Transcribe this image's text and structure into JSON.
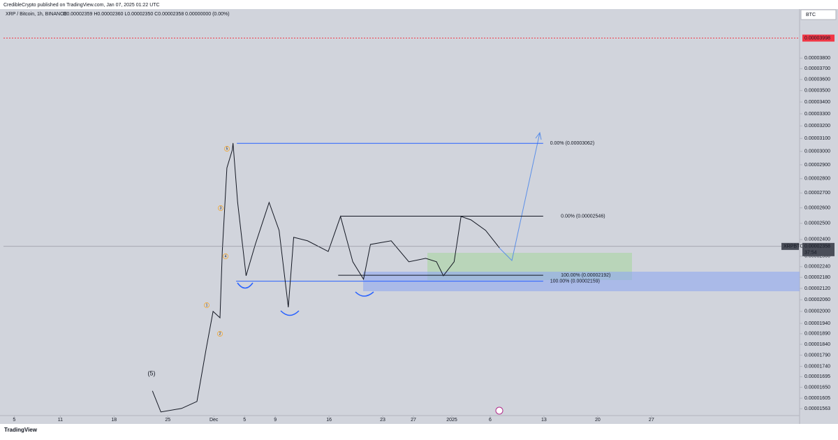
{
  "header": {
    "published": "CredibleCrypto published on TradingView.com, Jan 07, 2025 01:22 UTC",
    "footer": "TradingView"
  },
  "chart_data": {
    "type": "line",
    "log_scale": true,
    "grid": false,
    "currency": "BTC",
    "symbol_line": "XRP / Bitcoin, 1h, BINANCE",
    "ohlc": "O0.00002359 H0.00002360 L0.00002350 C0.00002358 0.00000000 (0.00%)",
    "x": [
      18,
      19.1,
      21.8,
      23.8,
      25,
      25.9,
      26.8,
      27.1,
      27.7,
      28.4,
      28.5,
      29.1,
      30.2,
      31.4,
      33.2,
      34.5,
      35.7,
      36.4,
      38.2,
      40.9,
      42.5,
      44.1,
      45.5,
      46.4,
      49.1,
      51.4,
      53.6,
      55,
      55.9,
      57.3,
      58.2,
      59.5,
      61.4,
      63.2
    ],
    "series": [
      {
        "name": "XRPBTC",
        "color": "#131722",
        "values": [
          1.635e-05,
          1.55e-05,
          1.564e-05,
          1.592e-05,
          1.819e-05,
          2e-05,
          1.968e-05,
          2.328e-05,
          2.877e-05,
          3.01e-05,
          3.064e-05,
          2.636e-05,
          2.189e-05,
          2.37e-05,
          2.636e-05,
          2.456e-05,
          2.021e-05,
          2.413e-05,
          2.392e-05,
          2.328e-05,
          2.544e-05,
          2.268e-05,
          2.17e-05,
          2.37e-05,
          2.392e-05,
          2.268e-05,
          2.288e-05,
          2.268e-05,
          2.189e-05,
          2.268e-05,
          2.544e-05,
          2.522e-05,
          2.456e-05,
          2.35e-05
        ]
      }
    ],
    "xlim": [
      -1.4,
      102.3
    ],
    "xticks": [
      {
        "value": 0,
        "label": "5"
      },
      {
        "value": 6,
        "label": "11"
      },
      {
        "value": 13,
        "label": "18"
      },
      {
        "value": 20,
        "label": "25"
      },
      {
        "value": 26,
        "label": "Dec"
      },
      {
        "value": 30,
        "label": "5"
      },
      {
        "value": 34,
        "label": "9"
      },
      {
        "value": 41,
        "label": "16"
      },
      {
        "value": 48,
        "label": "23"
      },
      {
        "value": 52,
        "label": "27"
      },
      {
        "value": 57,
        "label": "2025"
      },
      {
        "value": 62,
        "label": "6"
      },
      {
        "value": 69,
        "label": "13"
      },
      {
        "value": 76,
        "label": "20"
      },
      {
        "value": 83,
        "label": "27"
      }
    ],
    "ylim": [
      1.536e-05,
      4.303e-05
    ],
    "yticks": [
      {
        "value": 3.8e-05,
        "label": "0.00003800"
      },
      {
        "value": 3.7e-05,
        "label": "0.00003700"
      },
      {
        "value": 3.6e-05,
        "label": "0.00003600"
      },
      {
        "value": 3.5e-05,
        "label": "0.00003500"
      },
      {
        "value": 3.4e-05,
        "label": "0.00003400"
      },
      {
        "value": 3.3e-05,
        "label": "0.00003300"
      },
      {
        "value": 3.2e-05,
        "label": "0.00003200"
      },
      {
        "value": 3.1e-05,
        "label": "0.00003100"
      },
      {
        "value": 3e-05,
        "label": "0.00003000"
      },
      {
        "value": 2.9e-05,
        "label": "0.00002900"
      },
      {
        "value": 2.8e-05,
        "label": "0.00002800"
      },
      {
        "value": 2.7e-05,
        "label": "0.00002700"
      },
      {
        "value": 2.6e-05,
        "label": "0.00002600"
      },
      {
        "value": 2.5e-05,
        "label": "0.00002500"
      },
      {
        "value": 2.4e-05,
        "label": "0.00002400"
      },
      {
        "value": 2.3e-05,
        "label": "0.00002300"
      },
      {
        "value": 2.24e-05,
        "label": "0.00002240"
      },
      {
        "value": 2.18e-05,
        "label": "0.00002180"
      },
      {
        "value": 2.12e-05,
        "label": "0.00002120"
      },
      {
        "value": 2.06e-05,
        "label": "0.00002060"
      },
      {
        "value": 2e-05,
        "label": "0.00002000"
      },
      {
        "value": 1.94e-05,
        "label": "0.00001940"
      },
      {
        "value": 1.89e-05,
        "label": "0.00001890"
      },
      {
        "value": 1.84e-05,
        "label": "0.00001840"
      },
      {
        "value": 1.79e-05,
        "label": "0.00001790"
      },
      {
        "value": 1.74e-05,
        "label": "0.00001740"
      },
      {
        "value": 1.695e-05,
        "label": "0.00001695"
      },
      {
        "value": 1.65e-05,
        "label": "0.00001650"
      },
      {
        "value": 1.605e-05,
        "label": "0.00001605"
      },
      {
        "value": 1.563e-05,
        "label": "0.00001563"
      }
    ],
    "alert_level": {
      "value": 3.998e-05,
      "label": "0.00003998"
    },
    "last_price": {
      "value": 2.358e-05,
      "label": "0.00002358",
      "countdown": "37:54",
      "symbol": "XRPBTC"
    },
    "fib_levels": [
      {
        "value": 3.062e-05,
        "label": "0.00% (0.00003062)",
        "color": "#2962ff"
      },
      {
        "value": 2.546e-05,
        "label": "0.00% (0.00002546)",
        "color": "#131722"
      },
      {
        "value": 2.192e-05,
        "label": "100.00% (0.00002192)",
        "color": "#131722"
      },
      {
        "value": 2.159e-05,
        "label": "100.00% (0.00002159)",
        "color": "#2962ff"
      }
    ],
    "wave_labels": [
      "5",
      "3",
      "4",
      "1",
      "2"
    ],
    "wave_label_major": "(5)"
  }
}
